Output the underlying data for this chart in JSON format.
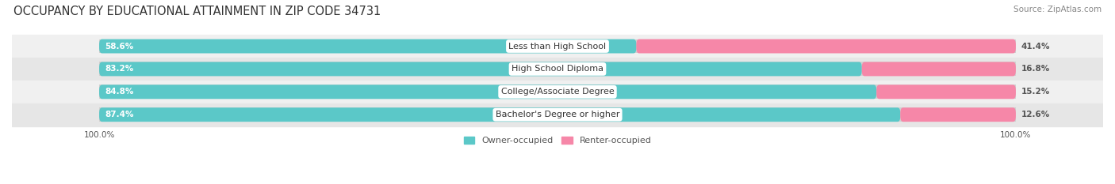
{
  "title": "OCCUPANCY BY EDUCATIONAL ATTAINMENT IN ZIP CODE 34731",
  "source": "Source: ZipAtlas.com",
  "categories": [
    "Less than High School",
    "High School Diploma",
    "College/Associate Degree",
    "Bachelor's Degree or higher"
  ],
  "owner_pct": [
    58.6,
    83.2,
    84.8,
    87.4
  ],
  "renter_pct": [
    41.4,
    16.8,
    15.2,
    12.6
  ],
  "owner_color": "#5bc8c8",
  "renter_color": "#f687a8",
  "row_bg_even": "#f0f0f0",
  "row_bg_odd": "#e6e6e6",
  "bar_bg_color": "#d0d0d0",
  "title_fontsize": 10.5,
  "source_fontsize": 7.5,
  "bar_label_fontsize": 7.5,
  "category_fontsize": 8,
  "legend_fontsize": 8,
  "axis_tick_fontsize": 7.5,
  "axis_label_left": "100.0%",
  "axis_label_right": "100.0%"
}
